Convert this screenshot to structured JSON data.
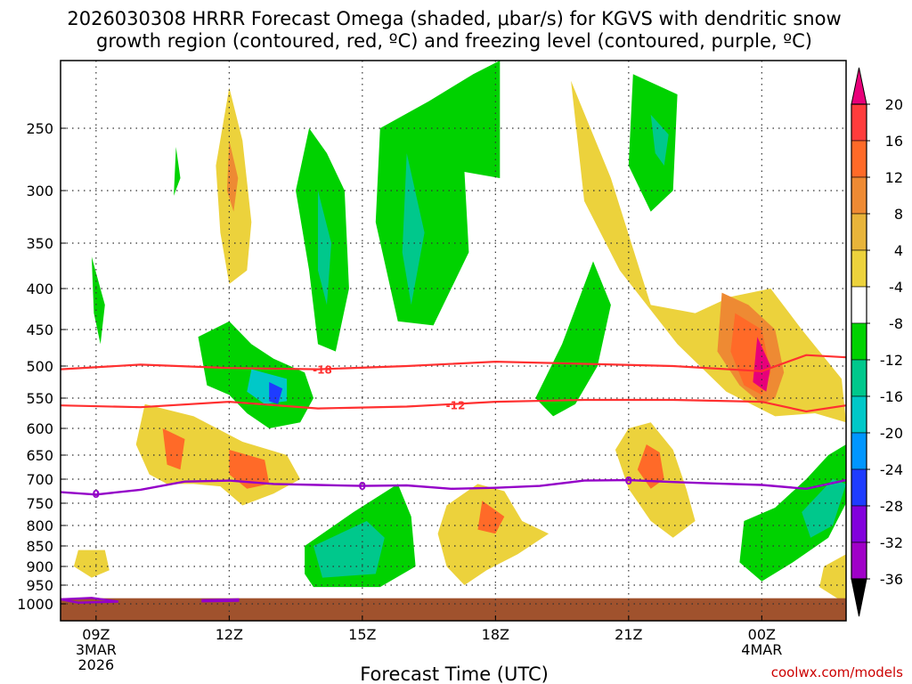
{
  "chart_data": {
    "type": "heatmap",
    "title_line1": "2026030308 HRRR Forecast Omega (shaded, μbar/s) for KGVS with dendritic snow",
    "title_line2": "growth region (contoured, red, ºC) and freezing level (contoured, purple, ºC)",
    "xlabel": "Forecast Time (UTC)",
    "ylabel": "",
    "watermark": "coolwx.com/models",
    "x_ticks": [
      {
        "hours": 1,
        "label": "09Z",
        "sub1": "3MAR",
        "sub2": "2026"
      },
      {
        "hours": 4,
        "label": "12Z",
        "sub1": "",
        "sub2": ""
      },
      {
        "hours": 7,
        "label": "15Z",
        "sub1": "",
        "sub2": ""
      },
      {
        "hours": 10,
        "label": "18Z",
        "sub1": "",
        "sub2": ""
      },
      {
        "hours": 13,
        "label": "21Z",
        "sub1": "",
        "sub2": ""
      },
      {
        "hours": 16,
        "label": "00Z",
        "sub1": "4MAR",
        "sub2": ""
      }
    ],
    "x_range_hours": [
      0.2,
      17.9
    ],
    "y_ticks": [
      250,
      300,
      350,
      400,
      450,
      500,
      550,
      600,
      650,
      700,
      750,
      800,
      850,
      900,
      950,
      1000
    ],
    "y_range_mb": [
      1020,
      200
    ],
    "colorbar": {
      "levels": [
        20,
        16,
        12,
        8,
        4,
        -4,
        -8,
        -12,
        -16,
        -20,
        -24,
        -28,
        -32,
        -36
      ],
      "labels": [
        "20",
        "16",
        "12",
        "8",
        "4",
        "-4",
        "-8",
        "-12",
        "-16",
        "-20",
        "-24",
        "-28",
        "-32",
        "-36"
      ],
      "colors": [
        "#e8007a",
        "#ff3c3c",
        "#ff6a28",
        "#ee8a33",
        "#e8b43a",
        "#ecd23c",
        "#ffffff",
        "#00d200",
        "#00c88c",
        "#00c8c8",
        "#0096ff",
        "#1e3cff",
        "#8200dc",
        "#a000c8",
        "#b4b4b4",
        "#000000"
      ]
    },
    "omega_areas": [
      {
        "level": 4,
        "points": [
          [
            4,
            220
          ],
          [
            4.3,
            260
          ],
          [
            4.5,
            330
          ],
          [
            4.4,
            380
          ],
          [
            4,
            395
          ],
          [
            3.8,
            340
          ],
          [
            3.7,
            280
          ]
        ]
      },
      {
        "level": 8,
        "points": [
          [
            4,
            260
          ],
          [
            4.2,
            290
          ],
          [
            4.1,
            320
          ],
          [
            3.95,
            300
          ]
        ]
      },
      {
        "level": -4,
        "points": [
          [
            0.9,
            365
          ],
          [
            1.2,
            420
          ],
          [
            1.1,
            470
          ],
          [
            0.95,
            430
          ]
        ]
      },
      {
        "level": -4,
        "points": [
          [
            2.8,
            265
          ],
          [
            2.9,
            290
          ],
          [
            2.75,
            305
          ]
        ]
      },
      {
        "level": -4,
        "points": [
          [
            5.8,
            250
          ],
          [
            6.2,
            270
          ],
          [
            6.6,
            300
          ],
          [
            6.7,
            400
          ],
          [
            6.4,
            480
          ],
          [
            6,
            470
          ],
          [
            5.8,
            380
          ],
          [
            5.5,
            300
          ]
        ]
      },
      {
        "level": -8,
        "points": [
          [
            6,
            300
          ],
          [
            6.3,
            350
          ],
          [
            6.2,
            420
          ],
          [
            6,
            380
          ]
        ]
      },
      {
        "level": -4,
        "points": [
          [
            7.4,
            250
          ],
          [
            8.5,
            230
          ],
          [
            9.5,
            210
          ],
          [
            10.1,
            200
          ],
          [
            10.1,
            290
          ],
          [
            9.3,
            285
          ],
          [
            9.4,
            360
          ],
          [
            8.6,
            445
          ],
          [
            7.8,
            440
          ],
          [
            7.3,
            330
          ]
        ]
      },
      {
        "level": -8,
        "points": [
          [
            8,
            270
          ],
          [
            8.4,
            340
          ],
          [
            8.1,
            420
          ],
          [
            7.9,
            360
          ]
        ]
      },
      {
        "level": 4,
        "points": [
          [
            11.7,
            215
          ],
          [
            12.6,
            290
          ],
          [
            13.5,
            420
          ],
          [
            14.5,
            430
          ],
          [
            15.3,
            410
          ],
          [
            16.2,
            400
          ],
          [
            16.9,
            450
          ],
          [
            17.8,
            520
          ],
          [
            17.9,
            590
          ],
          [
            17.2,
            575
          ],
          [
            16.3,
            580
          ],
          [
            15.2,
            540
          ],
          [
            14.1,
            470
          ],
          [
            12.8,
            380
          ],
          [
            12,
            310
          ]
        ]
      },
      {
        "level": -4,
        "points": [
          [
            13.1,
            210
          ],
          [
            14.1,
            225
          ],
          [
            14,
            300
          ],
          [
            13.5,
            320
          ],
          [
            13,
            280
          ]
        ]
      },
      {
        "level": -8,
        "points": [
          [
            13.5,
            240
          ],
          [
            13.9,
            255
          ],
          [
            13.8,
            280
          ],
          [
            13.6,
            270
          ]
        ]
      },
      {
        "level": 8,
        "points": [
          [
            15.1,
            405
          ],
          [
            15.7,
            420
          ],
          [
            16.3,
            450
          ],
          [
            16.5,
            510
          ],
          [
            16.3,
            550
          ],
          [
            16,
            560
          ],
          [
            15.5,
            530
          ],
          [
            15,
            480
          ]
        ]
      },
      {
        "level": 12,
        "points": [
          [
            15.4,
            430
          ],
          [
            16,
            450
          ],
          [
            16.2,
            510
          ],
          [
            16,
            545
          ],
          [
            15.6,
            530
          ],
          [
            15.3,
            480
          ]
        ]
      },
      {
        "level": 20,
        "points": [
          [
            15.9,
            460
          ],
          [
            16.2,
            500
          ],
          [
            16.1,
            540
          ],
          [
            15.8,
            525
          ]
        ]
      },
      {
        "level": 4,
        "points": [
          [
            2.1,
            560
          ],
          [
            3.2,
            580
          ],
          [
            4.3,
            625
          ],
          [
            5.3,
            650
          ],
          [
            5.6,
            700
          ],
          [
            5,
            730
          ],
          [
            4.3,
            755
          ],
          [
            3.8,
            715
          ],
          [
            3.2,
            710
          ],
          [
            2.6,
            710
          ],
          [
            2.2,
            690
          ],
          [
            1.9,
            630
          ]
        ]
      },
      {
        "level": 12,
        "points": [
          [
            2.5,
            600
          ],
          [
            3,
            620
          ],
          [
            2.9,
            680
          ],
          [
            2.6,
            670
          ]
        ]
      },
      {
        "level": 12,
        "points": [
          [
            4,
            640
          ],
          [
            4.8,
            660
          ],
          [
            4.9,
            710
          ],
          [
            4.4,
            720
          ],
          [
            4,
            690
          ]
        ]
      },
      {
        "level": -4,
        "points": [
          [
            3.3,
            460
          ],
          [
            4,
            440
          ],
          [
            4.5,
            470
          ],
          [
            5,
            490
          ],
          [
            5.7,
            510
          ],
          [
            5.9,
            550
          ],
          [
            5.6,
            590
          ],
          [
            4.9,
            600
          ],
          [
            4.4,
            575
          ],
          [
            4,
            545
          ],
          [
            3.5,
            530
          ]
        ]
      },
      {
        "level": -12,
        "points": [
          [
            4.5,
            505
          ],
          [
            5.3,
            520
          ],
          [
            5.3,
            555
          ],
          [
            4.8,
            560
          ],
          [
            4.4,
            540
          ]
        ]
      },
      {
        "level": -20,
        "points": [
          [
            4.9,
            525
          ],
          [
            5.2,
            535
          ],
          [
            5.1,
            560
          ],
          [
            4.9,
            555
          ]
        ]
      },
      {
        "level": -4,
        "points": [
          [
            5.7,
            850
          ],
          [
            6.8,
            770
          ],
          [
            7.8,
            710
          ],
          [
            8.1,
            780
          ],
          [
            8.2,
            900
          ],
          [
            7.4,
            955
          ],
          [
            5.9,
            955
          ],
          [
            5.7,
            920
          ]
        ]
      },
      {
        "level": -8,
        "points": [
          [
            5.9,
            850
          ],
          [
            7.1,
            790
          ],
          [
            7.5,
            830
          ],
          [
            7.3,
            920
          ],
          [
            6.1,
            930
          ]
        ]
      },
      {
        "level": 4,
        "points": [
          [
            8.9,
            755
          ],
          [
            9.6,
            710
          ],
          [
            10.2,
            725
          ],
          [
            10.6,
            790
          ],
          [
            11.2,
            820
          ],
          [
            10.5,
            870
          ],
          [
            9.8,
            910
          ],
          [
            9.3,
            950
          ],
          [
            8.9,
            900
          ],
          [
            8.7,
            820
          ]
        ]
      },
      {
        "level": 12,
        "points": [
          [
            9.7,
            745
          ],
          [
            10.2,
            780
          ],
          [
            10,
            820
          ],
          [
            9.6,
            810
          ]
        ]
      },
      {
        "level": -4,
        "points": [
          [
            10.9,
            550
          ],
          [
            11.5,
            470
          ],
          [
            12.2,
            370
          ],
          [
            12.6,
            420
          ],
          [
            12.3,
            500
          ],
          [
            11.8,
            560
          ],
          [
            11.3,
            580
          ]
        ]
      },
      {
        "level": 4,
        "points": [
          [
            12.7,
            640
          ],
          [
            13,
            600
          ],
          [
            13.5,
            590
          ],
          [
            14,
            640
          ],
          [
            14.3,
            720
          ],
          [
            14.5,
            790
          ],
          [
            14,
            830
          ],
          [
            13.5,
            790
          ],
          [
            13,
            720
          ]
        ]
      },
      {
        "level": 12,
        "points": [
          [
            13.4,
            630
          ],
          [
            13.7,
            645
          ],
          [
            13.8,
            700
          ],
          [
            13.5,
            720
          ],
          [
            13.2,
            680
          ]
        ]
      },
      {
        "level": -4,
        "points": [
          [
            15.6,
            790
          ],
          [
            16.3,
            760
          ],
          [
            17,
            700
          ],
          [
            17.5,
            650
          ],
          [
            17.9,
            630
          ],
          [
            17.9,
            750
          ],
          [
            17.5,
            830
          ],
          [
            16.7,
            890
          ],
          [
            16,
            940
          ],
          [
            15.5,
            890
          ]
        ]
      },
      {
        "level": -8,
        "points": [
          [
            16.9,
            770
          ],
          [
            17.6,
            700
          ],
          [
            17.9,
            710
          ],
          [
            17.6,
            800
          ],
          [
            17.1,
            830
          ]
        ]
      },
      {
        "level": 4,
        "points": [
          [
            0.6,
            860
          ],
          [
            1.2,
            860
          ],
          [
            1.3,
            910
          ],
          [
            0.9,
            930
          ],
          [
            0.5,
            900
          ]
        ]
      },
      {
        "level": 4,
        "points": [
          [
            17.4,
            900
          ],
          [
            17.9,
            870
          ],
          [
            17.9,
            1000
          ],
          [
            17.3,
            955
          ]
        ]
      }
    ],
    "dgz_contours": [
      {
        "label": "-18",
        "label_at": [
          6.1,
          505
        ],
        "points": [
          [
            0.2,
            505
          ],
          [
            2,
            498
          ],
          [
            4,
            503
          ],
          [
            6,
            505
          ],
          [
            8,
            500
          ],
          [
            10,
            494
          ],
          [
            12,
            497
          ],
          [
            14,
            500
          ],
          [
            16,
            508
          ],
          [
            17,
            485
          ],
          [
            17.9,
            488
          ]
        ]
      },
      {
        "label": "-12",
        "label_at": [
          9.1,
          561
        ],
        "points": [
          [
            0.2,
            562
          ],
          [
            2,
            565
          ],
          [
            4,
            556
          ],
          [
            6,
            567
          ],
          [
            8,
            564
          ],
          [
            10,
            556
          ],
          [
            12,
            553
          ],
          [
            14,
            553
          ],
          [
            16,
            556
          ],
          [
            17,
            572
          ],
          [
            17.9,
            562
          ]
        ]
      }
    ],
    "freezing_contours": [
      {
        "label": "0",
        "label_at": [
          1,
          730
        ],
        "points": [
          [
            0.2,
            727
          ],
          [
            1,
            732
          ],
          [
            2,
            722
          ],
          [
            3,
            705
          ],
          [
            4,
            703
          ],
          [
            5,
            710
          ],
          [
            6,
            712
          ],
          [
            7,
            714
          ],
          [
            8,
            713
          ],
          [
            9,
            720
          ],
          [
            10,
            718
          ],
          [
            11,
            714
          ],
          [
            12,
            703
          ],
          [
            13,
            702
          ],
          [
            14,
            706
          ],
          [
            15,
            709
          ],
          [
            16,
            712
          ],
          [
            17,
            720
          ],
          [
            17.9,
            702
          ]
        ]
      }
    ],
    "freezing_small": [
      {
        "points": [
          [
            0.2,
            988
          ],
          [
            0.9,
            984
          ],
          [
            1.5,
            994
          ],
          [
            0.6,
            997
          ]
        ]
      },
      {
        "points": [
          [
            3.4,
            990
          ],
          [
            4.2,
            988
          ],
          [
            4.2,
            992
          ],
          [
            3.4,
            993
          ]
        ]
      }
    ],
    "terrain_mb": 985
  }
}
